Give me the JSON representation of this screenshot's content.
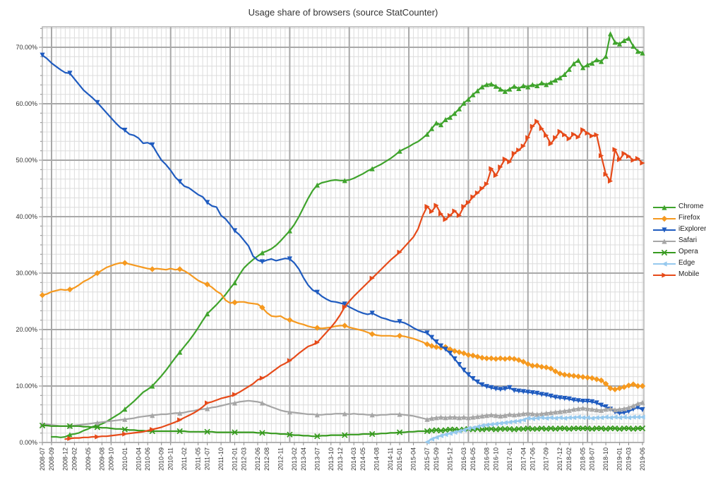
{
  "title": "Usage share of browsers (source StatCounter)",
  "chart_data": {
    "type": "line",
    "title": "Usage share of browsers (source StatCounter)",
    "x_axis": {
      "unit": "month",
      "start": "2008-07",
      "end": "2019-06",
      "tick_labels": [
        "2008-07",
        "2008-09",
        "2008-12",
        "2009-02",
        "2009-05",
        "2009-08",
        "2009-10",
        "2010-01",
        "2010-04",
        "2010-06",
        "2010-09",
        "2010-11",
        "2011-02",
        "2011-05",
        "2011-07",
        "2011-10",
        "2012-01",
        "2012-03",
        "2012-06",
        "2012-08",
        "2012-11",
        "2013-02",
        "2013-04",
        "2013-07",
        "2013-10",
        "2013-12",
        "2014-03",
        "2014-05",
        "2014-08",
        "2014-11",
        "2015-01",
        "2015-04",
        "2015-07",
        "2015-09",
        "2015-12",
        "2016-03",
        "2016-05",
        "2016-08",
        "2016-10",
        "2017-01",
        "2017-04",
        "2017-06",
        "2017-09",
        "2017-12",
        "2018-02",
        "2018-05",
        "2018-07",
        "2018-10",
        "2019-01",
        "2019-03",
        "2019-06"
      ]
    },
    "y_axis": {
      "min": 0,
      "max": 73.5,
      "major_step": 10,
      "minor_step": 1.6667,
      "tick_labels": [
        "0.00%",
        "10.00%",
        "20.00%",
        "30.00%",
        "40.00%",
        "50.00%",
        "60.00%",
        "70.00%"
      ],
      "grid": true
    },
    "legend_position": "right",
    "colors": {
      "minor_grid": "#dcdcdc",
      "major_grid": "#a8a8a8",
      "border": "#b4b4b4",
      "text": "#333333"
    },
    "series": [
      {
        "name": "Chrome",
        "color": "#3fa32c",
        "marker": "triangle-up",
        "start_month": 2,
        "values": [
          1.0,
          1.0,
          0.9,
          1.0,
          1.4,
          1.5,
          1.7,
          2.1,
          2.4,
          2.8,
          3.0,
          3.3,
          3.7,
          4.2,
          4.7,
          5.2,
          5.9,
          6.6,
          7.3,
          8.1,
          8.9,
          9.4,
          10.0,
          10.9,
          11.8,
          12.8,
          13.9,
          15.0,
          16.0,
          17.0,
          18.0,
          19.1,
          20.3,
          21.6,
          22.8,
          23.6,
          24.4,
          25.3,
          26.2,
          27.3,
          28.3,
          29.7,
          30.9,
          31.7,
          32.4,
          33.0,
          33.6,
          33.9,
          34.3,
          34.9,
          35.7,
          36.6,
          37.5,
          38.6,
          40.0,
          41.6,
          43.2,
          44.6,
          45.6,
          46.0,
          46.2,
          46.4,
          46.5,
          46.4,
          46.4,
          46.5,
          46.8,
          47.2,
          47.6,
          48.1,
          48.5,
          48.9,
          49.3,
          49.8,
          50.3,
          50.9,
          51.6,
          52.0,
          52.4,
          52.9,
          53.3,
          53.9,
          54.6,
          55.6,
          56.6,
          56.3,
          57.2,
          57.6,
          58.3,
          59.1,
          60.1,
          60.8,
          61.6,
          62.3,
          63.0,
          63.4,
          63.5,
          63.1,
          62.6,
          62.2,
          62.6,
          63.1,
          62.7,
          63.2,
          63.0,
          63.4,
          63.2,
          63.7,
          63.4,
          63.8,
          64.2,
          64.6,
          65.2,
          66.1,
          67.1,
          67.7,
          66.4,
          66.9,
          67.2,
          67.8,
          67.5,
          68.4,
          72.4,
          70.9,
          70.6,
          71.2,
          71.6,
          70.2,
          69.3,
          69.0
        ]
      },
      {
        "name": "Firefox",
        "color": "#f5991f",
        "marker": "diamond",
        "start_month": 0,
        "values": [
          26.1,
          26.3,
          26.7,
          26.9,
          27.1,
          27.0,
          27.1,
          27.4,
          27.9,
          28.5,
          28.9,
          29.4,
          30.0,
          30.5,
          31.0,
          31.3,
          31.6,
          31.8,
          31.8,
          31.6,
          31.4,
          31.2,
          31.0,
          30.8,
          30.7,
          30.8,
          30.7,
          30.6,
          30.8,
          30.6,
          30.7,
          30.4,
          29.9,
          29.3,
          28.7,
          28.3,
          28.0,
          27.5,
          26.8,
          26.3,
          25.2,
          24.7,
          24.8,
          24.9,
          24.9,
          24.7,
          24.6,
          24.5,
          23.9,
          23.0,
          22.4,
          22.3,
          22.4,
          21.9,
          21.7,
          21.4,
          21.1,
          20.9,
          20.6,
          20.4,
          20.3,
          20.2,
          20.3,
          20.4,
          20.6,
          20.7,
          20.7,
          20.4,
          20.2,
          20.0,
          19.8,
          19.5,
          19.2,
          19.0,
          18.9,
          18.9,
          18.9,
          18.8,
          18.9,
          18.8,
          18.6,
          18.4,
          18.1,
          17.8,
          17.4,
          17.1,
          16.9,
          16.8,
          16.9,
          16.5,
          16.2,
          16.0,
          15.8,
          15.5,
          15.4,
          15.2,
          15.0,
          14.9,
          14.9,
          14.8,
          14.9,
          14.8,
          14.9,
          14.8,
          14.6,
          14.3,
          13.9,
          13.6,
          13.6,
          13.4,
          13.3,
          13.1,
          12.6,
          12.2,
          12.0,
          11.9,
          11.8,
          11.7,
          11.6,
          11.5,
          11.4,
          11.2,
          11.0,
          10.4,
          9.6,
          9.4,
          9.6,
          9.8,
          10.1,
          10.3,
          10.0,
          10.0
        ]
      },
      {
        "name": "iExplorer",
        "color": "#1f5bbf",
        "marker": "triangle-down",
        "start_month": 0,
        "values": [
          68.6,
          68.0,
          67.2,
          66.6,
          66.0,
          65.5,
          65.4,
          64.4,
          63.4,
          62.4,
          61.7,
          61.0,
          60.2,
          59.3,
          58.4,
          57.5,
          56.6,
          55.8,
          55.3,
          54.6,
          54.4,
          53.9,
          53.0,
          53.1,
          52.7,
          51.3,
          50.0,
          49.2,
          48.2,
          47.0,
          46.2,
          45.4,
          45.1,
          44.5,
          43.9,
          43.5,
          42.5,
          41.9,
          41.7,
          40.2,
          39.6,
          38.6,
          37.5,
          36.8,
          35.8,
          34.8,
          33.0,
          32.3,
          32.0,
          32.3,
          32.5,
          32.2,
          32.4,
          32.6,
          32.5,
          31.8,
          30.7,
          29.2,
          27.9,
          27.0,
          26.6,
          25.9,
          25.4,
          25.0,
          24.9,
          24.7,
          24.5,
          24.0,
          23.6,
          23.2,
          22.9,
          22.7,
          22.9,
          22.5,
          22.1,
          21.9,
          21.6,
          21.4,
          21.4,
          21.2,
          20.8,
          20.3,
          19.9,
          19.6,
          19.4,
          18.6,
          17.8,
          17.1,
          16.5,
          15.8,
          14.8,
          13.8,
          12.8,
          12.0,
          11.3,
          10.7,
          10.2,
          9.9,
          9.7,
          9.5,
          9.4,
          9.5,
          9.7,
          9.2,
          9.1,
          9.0,
          8.9,
          8.8,
          8.7,
          8.5,
          8.4,
          8.2,
          8.0,
          7.9,
          7.8,
          7.7,
          7.5,
          7.4,
          7.3,
          7.3,
          7.2,
          7.0,
          6.6,
          6.3,
          5.9,
          5.4,
          5.2,
          5.3,
          5.5,
          5.9,
          6.2,
          5.8
        ]
      },
      {
        "name": "Safari",
        "color": "#a6a6a6",
        "marker": "triangle-up",
        "start_month": 0,
        "values": [
          3.3,
          3.2,
          3.1,
          3.0,
          2.9,
          2.9,
          2.9,
          3.0,
          3.1,
          3.2,
          3.3,
          3.4,
          3.5,
          3.6,
          3.7,
          3.8,
          3.9,
          4.0,
          4.1,
          4.2,
          4.3,
          4.5,
          4.6,
          4.7,
          4.8,
          4.9,
          5.0,
          5.0,
          5.1,
          5.2,
          5.2,
          5.3,
          5.5,
          5.6,
          5.8,
          5.9,
          6.0,
          6.2,
          6.3,
          6.5,
          6.7,
          6.9,
          7.0,
          7.2,
          7.3,
          7.4,
          7.3,
          7.2,
          7.0,
          6.6,
          6.3,
          6.0,
          5.7,
          5.5,
          5.4,
          5.3,
          5.2,
          5.1,
          5.0,
          5.0,
          4.9,
          4.9,
          5.0,
          5.0,
          5.1,
          5.1,
          5.1,
          5.0,
          5.1,
          5.0,
          5.0,
          4.9,
          4.9,
          4.8,
          4.9,
          4.9,
          5.0,
          5.0,
          5.0,
          4.9,
          4.8,
          4.7,
          4.5,
          4.3,
          4.1,
          4.3,
          4.4,
          4.5,
          4.4,
          4.5,
          4.5,
          4.4,
          4.5,
          4.4,
          4.5,
          4.6,
          4.7,
          4.8,
          4.9,
          4.8,
          4.7,
          4.8,
          5.0,
          4.9,
          5.0,
          5.1,
          5.2,
          5.1,
          5.0,
          5.1,
          5.2,
          5.3,
          5.4,
          5.5,
          5.6,
          5.7,
          5.9,
          6.0,
          6.1,
          6.0,
          5.9,
          5.8,
          5.7,
          5.9,
          6.0,
          5.8,
          5.9,
          6.0,
          6.2,
          6.5,
          6.9,
          7.1
        ]
      },
      {
        "name": "Opera",
        "color": "#379a1f",
        "marker": "x",
        "start_month": 0,
        "values": [
          3.0,
          3.0,
          2.9,
          2.9,
          2.9,
          2.9,
          2.9,
          2.9,
          2.9,
          2.8,
          2.8,
          2.7,
          2.7,
          2.6,
          2.6,
          2.5,
          2.4,
          2.4,
          2.3,
          2.2,
          2.2,
          2.1,
          2.1,
          2.0,
          2.0,
          2.0,
          2.0,
          2.0,
          2.0,
          2.0,
          2.0,
          2.0,
          1.9,
          1.9,
          1.9,
          1.9,
          1.9,
          1.9,
          1.8,
          1.8,
          1.8,
          1.8,
          1.8,
          1.8,
          1.8,
          1.8,
          1.8,
          1.7,
          1.7,
          1.7,
          1.6,
          1.6,
          1.5,
          1.5,
          1.4,
          1.3,
          1.3,
          1.2,
          1.2,
          1.1,
          1.1,
          1.2,
          1.2,
          1.3,
          1.3,
          1.3,
          1.3,
          1.4,
          1.4,
          1.4,
          1.5,
          1.5,
          1.5,
          1.5,
          1.6,
          1.6,
          1.7,
          1.7,
          1.8,
          1.8,
          1.9,
          1.9,
          2.0,
          2.0,
          2.0,
          2.1,
          2.2,
          2.1,
          2.2,
          2.3,
          2.3,
          2.2,
          2.3,
          2.4,
          2.3,
          2.4,
          2.3,
          2.4,
          2.4,
          2.3,
          2.4,
          2.4,
          2.4,
          2.3,
          2.4,
          2.4,
          2.5,
          2.4,
          2.4,
          2.5,
          2.4,
          2.5,
          2.4,
          2.5,
          2.5,
          2.4,
          2.5,
          2.5,
          2.5,
          2.5,
          2.4,
          2.5,
          2.5,
          2.4,
          2.5,
          2.5,
          2.4,
          2.5,
          2.5,
          2.4,
          2.5,
          2.5
        ]
      },
      {
        "name": "Edge",
        "color": "#96c9ee",
        "marker": "triangle-left",
        "start_month": 84,
        "values": [
          0.1,
          0.6,
          0.9,
          1.2,
          1.4,
          1.6,
          1.8,
          2.0,
          2.2,
          2.5,
          2.6,
          2.8,
          3.0,
          3.1,
          3.2,
          3.3,
          3.4,
          3.5,
          3.6,
          3.7,
          3.8,
          4.0,
          4.3,
          4.2,
          4.3,
          4.4,
          4.3,
          4.4,
          4.3,
          4.4,
          4.3,
          4.4,
          4.4,
          4.5,
          4.4,
          4.4,
          4.3,
          4.4,
          4.4,
          4.5,
          4.4,
          4.5,
          4.4,
          4.5,
          4.4,
          4.5,
          4.5,
          4.5
        ]
      },
      {
        "name": "Mobile",
        "color": "#e64a19",
        "marker": "triangle-right",
        "start_month": 5,
        "values": [
          0.6,
          0.7,
          0.8,
          0.8,
          0.9,
          0.9,
          1.0,
          1.0,
          1.1,
          1.1,
          1.2,
          1.3,
          1.4,
          1.5,
          1.6,
          1.7,
          1.8,
          1.9,
          2.1,
          2.3,
          2.5,
          2.7,
          3.0,
          3.3,
          3.6,
          4.0,
          4.4,
          4.8,
          5.2,
          5.7,
          6.3,
          7.0,
          7.2,
          7.5,
          7.8,
          8.0,
          8.2,
          8.5,
          8.9,
          9.4,
          9.9,
          10.4,
          11.1,
          11.4,
          11.8,
          12.4,
          13.0,
          13.6,
          14.0,
          14.5,
          15.1,
          15.8,
          16.4,
          17.0,
          17.3,
          17.7,
          18.6,
          19.5,
          20.4,
          21.4,
          22.6,
          24.0,
          25.0,
          25.9,
          26.7,
          27.5,
          28.3,
          29.1,
          29.9,
          30.7,
          31.5,
          32.3,
          33.0,
          33.7,
          34.6,
          35.5,
          36.4,
          37.8,
          40.1,
          41.8,
          40.9,
          42.0,
          40.5,
          39.5,
          40.2,
          41.0,
          40.2,
          41.8,
          42.5,
          43.5,
          44.2,
          45.0,
          45.8,
          48.5,
          47.3,
          48.8,
          50.2,
          49.7,
          51.2,
          51.8,
          52.5,
          54.0,
          56.0,
          56.9,
          55.6,
          54.4,
          52.9,
          54.0,
          55.1,
          54.5,
          53.8,
          54.6,
          54.1,
          55.4,
          54.8,
          54.3,
          54.5,
          50.8,
          47.5,
          46.3,
          51.9,
          50.1,
          51.2,
          50.7,
          50.0,
          50.3,
          49.5
        ]
      }
    ]
  }
}
